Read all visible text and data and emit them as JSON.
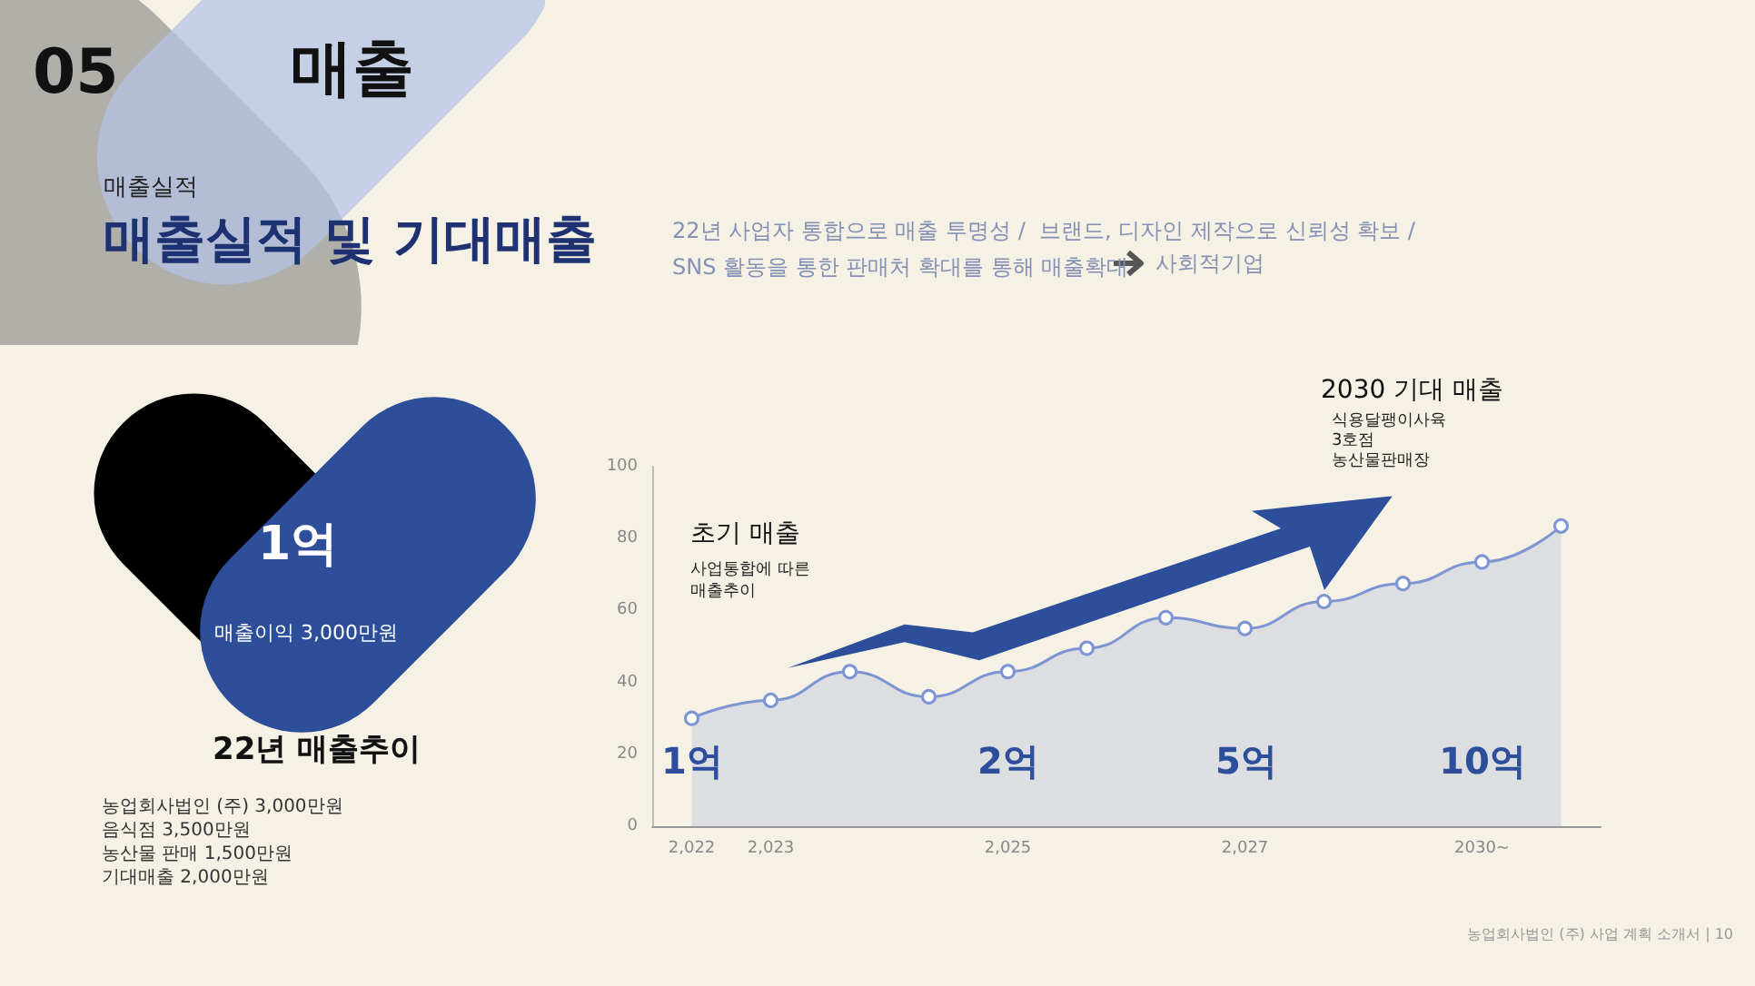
{
  "chart_data": {
    "type": "area",
    "title": "매출실적 및 기대매출",
    "subtitle": "22년 사업자 통합으로 매출 투명성 /  브랜드, 디자인 제작으로 신뢰성 확보 /\nSNS 활동을 통한 판매처 확대를 통해 매출확대",
    "categories": [
      "2,022",
      "2,023",
      null,
      null,
      "2,025",
      null,
      null,
      "2,027",
      null,
      null,
      "2030~",
      null
    ],
    "values": [
      30,
      35,
      43,
      36,
      43,
      49.5,
      58,
      55,
      62.5,
      67.5,
      73.5,
      83.5
    ],
    "color": "#7d95d3",
    "marker": "circle",
    "line_style": "solid",
    "grid": false,
    "ylim": [
      0,
      100
    ],
    "yticks": [
      0,
      20,
      40,
      60,
      80,
      100
    ],
    "annotations": [
      "05",
      "매출",
      "매출실적",
      "사회적기업",
      "1억",
      "매출이익 3,000만원",
      "22년 매출추이",
      "농업회사법인 (주) 3,000만원\n음식점 3,500만원\n농산물 판매 1,500만원\n기대매출 2,000만원",
      "초기 매출",
      "사업통합에 따른\n매출추이",
      "2030 기대 매출",
      "식용달팽이사육\n3호점\n농산물판매장",
      "농업회사법인 (주) 사업 계획 소개서 | 10",
      "1억",
      "2억",
      "5억",
      "10억"
    ]
  }
}
